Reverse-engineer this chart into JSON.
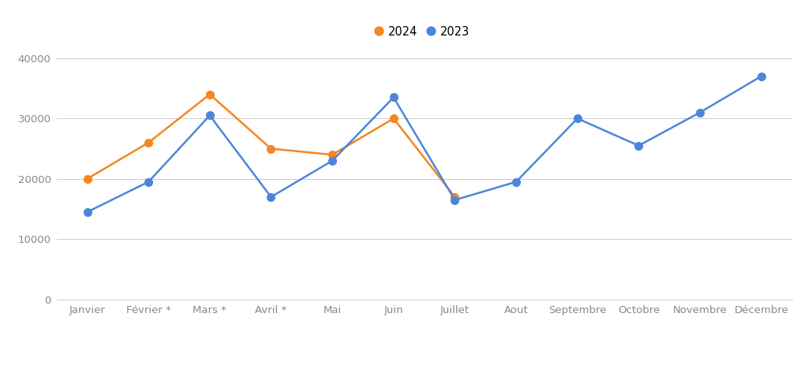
{
  "months": [
    "Janvier",
    "Février *",
    "Mars *",
    "Avril *",
    "Mai",
    "Juin",
    "Juillet",
    "Aout",
    "Septembre",
    "Octobre",
    "Novembre",
    "Décembre"
  ],
  "data_2024": [
    20000,
    26000,
    34000,
    25000,
    24000,
    30000,
    17000,
    null,
    null,
    null,
    null,
    null
  ],
  "data_2023": [
    14500,
    19500,
    30500,
    17000,
    23000,
    33500,
    16500,
    19500,
    30000,
    25500,
    31000,
    37000
  ],
  "color_2024": "#F4871F",
  "color_2023": "#4D86D9",
  "legend_2024": "2024",
  "legend_2023": "2023",
  "ylim": [
    0,
    42000
  ],
  "yticks": [
    0,
    10000,
    20000,
    30000,
    40000
  ],
  "ytick_labels": [
    "0",
    "10000",
    "20000",
    "30000",
    "40000"
  ],
  "background_color": "#ffffff",
  "grid_color": "#cccccc",
  "tick_color": "#888888",
  "marker_size": 8,
  "line_width": 1.8
}
